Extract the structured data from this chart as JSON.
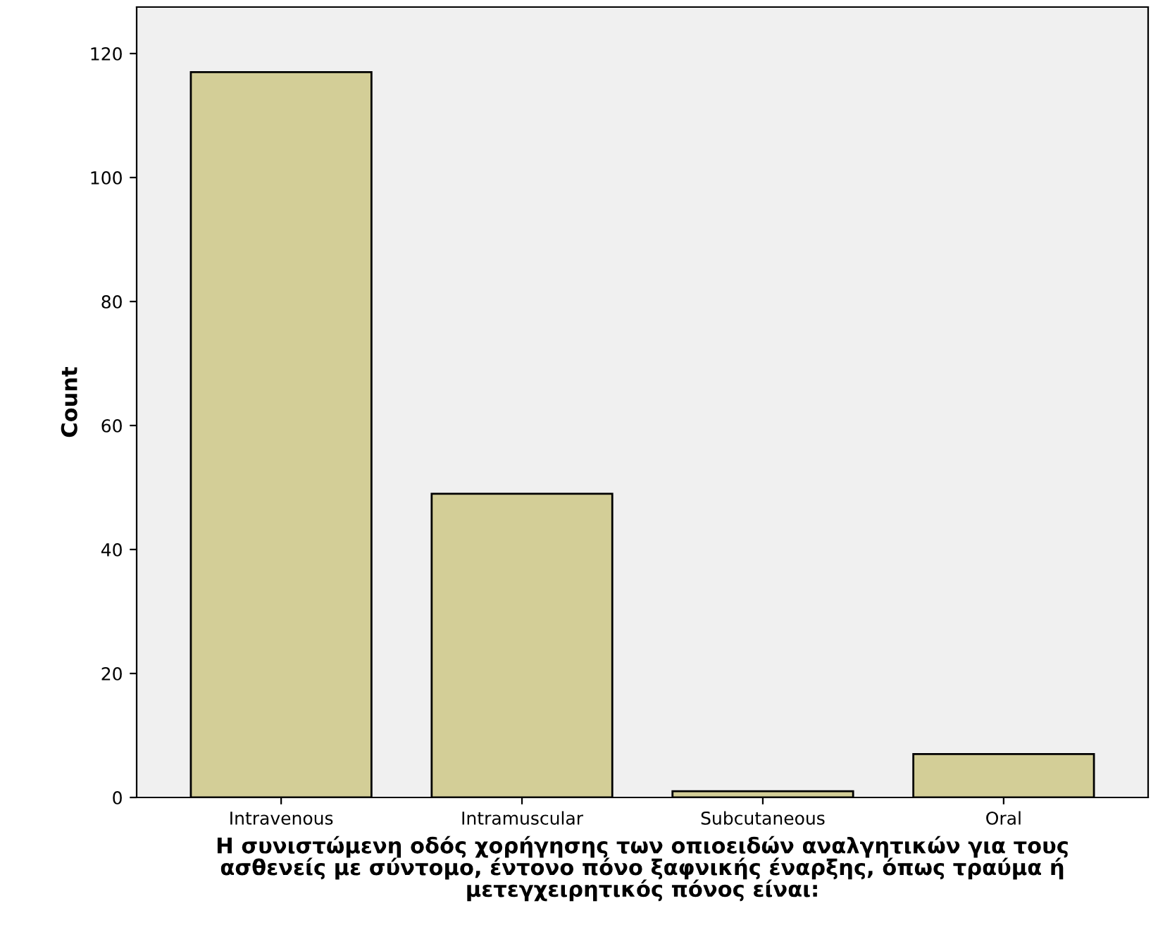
{
  "chart_data": {
    "type": "bar",
    "xlabel": "Η συνιστώμενη οδός χορήγησης των οπιοειδών αναλγητικών για τους\nασθενείς με σύντομο, έντονο πόνο ξαφνικής έναρξης, όπως τραύμα ή\nμετεγχειρητικός πόνος είναι:",
    "ylabel": "Count",
    "categories": [
      "Intravenous",
      "Intramuscular",
      "Subcutaneous",
      "Oral"
    ],
    "values": [
      117,
      49,
      1,
      7
    ],
    "color": "#d3ce97",
    "ylim": [
      0,
      127.5
    ],
    "yticks": [
      0,
      20,
      40,
      60,
      80,
      100,
      120
    ],
    "grid": false
  }
}
